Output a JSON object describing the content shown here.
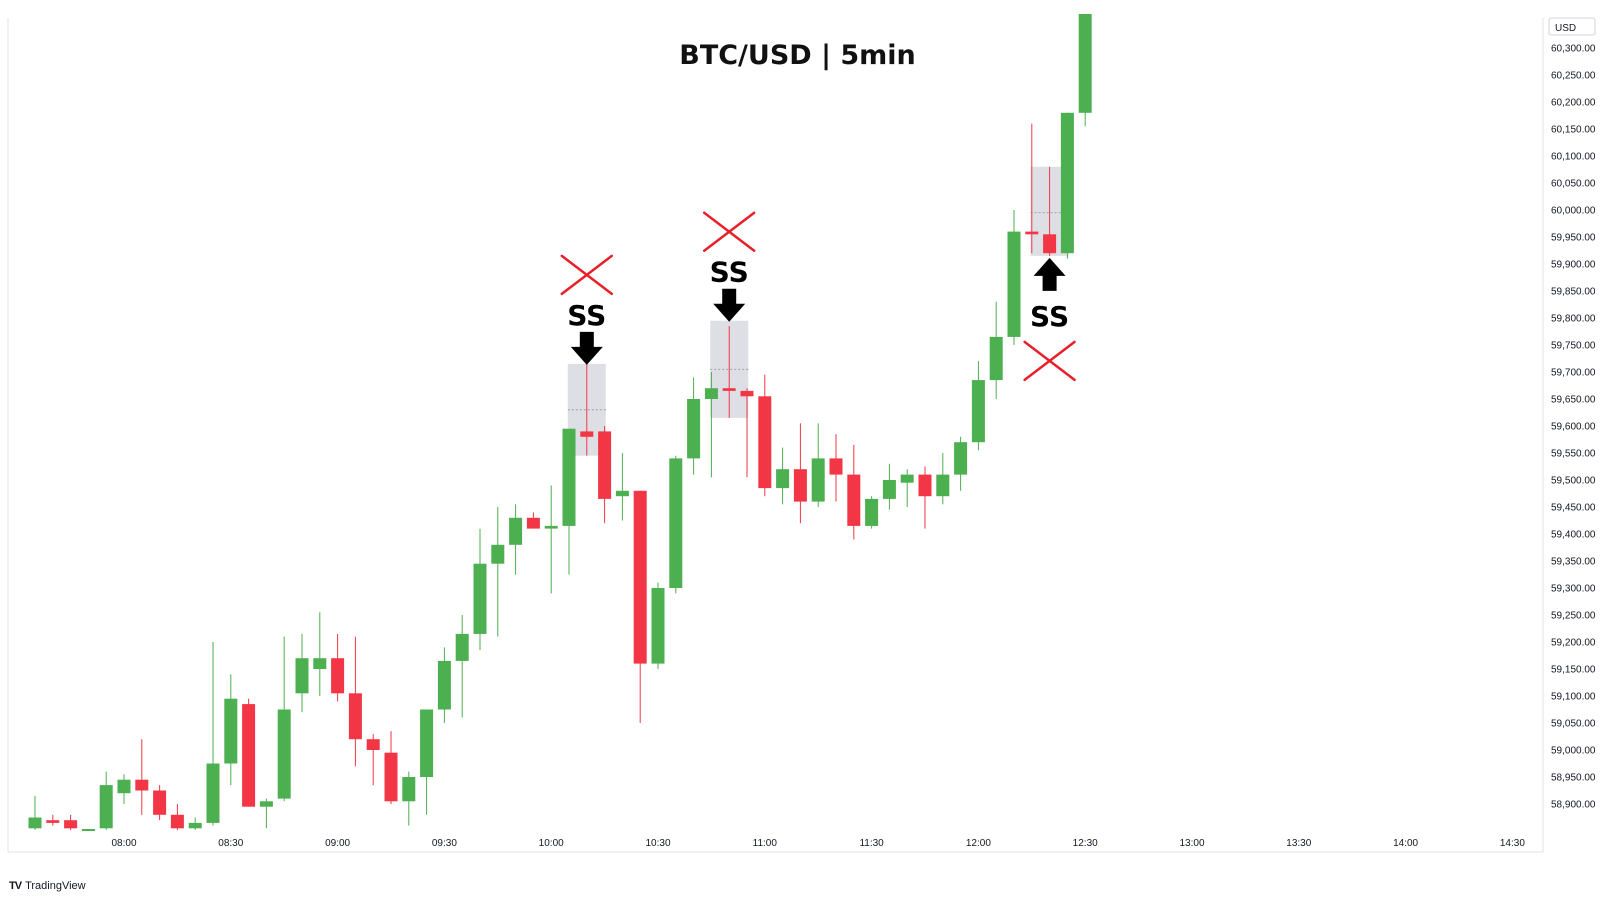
{
  "title": "BTC/USD | 5min",
  "brand": {
    "logo": "TV",
    "name": "TradingView"
  },
  "currency_label": "USD",
  "colors": {
    "up": "#4caf50",
    "down": "#f23645",
    "signal_zone": "#d1d4dc",
    "cross": "#e8202a",
    "arrow": "#000000"
  },
  "chart_data": {
    "type": "candlestick",
    "title": "BTC/USD | 5min",
    "ylabel": "USD",
    "ylim": [
      58840,
      60350
    ],
    "y_ticks": [
      58900,
      58950,
      59000,
      59050,
      59100,
      59150,
      59200,
      59250,
      59300,
      59350,
      59400,
      59450,
      59500,
      59550,
      59600,
      59650,
      59700,
      59750,
      59800,
      59850,
      59900,
      59950,
      60000,
      60050,
      60100,
      60150,
      60200,
      60250,
      60300
    ],
    "y_tick_labels": [
      "58,900.00",
      "58,950.00",
      "59,000.00",
      "59,050.00",
      "59,100.00",
      "59,150.00",
      "59,200.00",
      "59,250.00",
      "59,300.00",
      "59,350.00",
      "59,400.00",
      "59,450.00",
      "59,500.00",
      "59,550.00",
      "59,600.00",
      "59,650.00",
      "59,700.00",
      "59,750.00",
      "59,800.00",
      "59,850.00",
      "59,900.00",
      "59,950.00",
      "60,000.00",
      "60,050.00",
      "60,100.00",
      "60,150.00",
      "60,200.00",
      "60,250.00",
      "60,300.00"
    ],
    "x_tick_labels": [
      "08:00",
      "08:30",
      "09:00",
      "09:30",
      "10:00",
      "10:30",
      "11:00",
      "11:30",
      "12:00",
      "12:30",
      "13:00",
      "13:30",
      "14:00",
      "14:30"
    ],
    "first_candle_time": "07:35",
    "interval_minutes": 5,
    "candles": [
      {
        "o": 58855,
        "h": 58915,
        "l": 58845,
        "c": 58875
      },
      {
        "o": 58870,
        "h": 58880,
        "l": 58860,
        "c": 58865
      },
      {
        "o": 58870,
        "h": 58880,
        "l": 58845,
        "c": 58855
      },
      {
        "o": 58845,
        "h": 58850,
        "l": 58840,
        "c": 58845
      },
      {
        "o": 58855,
        "h": 58960,
        "l": 58850,
        "c": 58935
      },
      {
        "o": 58920,
        "h": 58955,
        "l": 58900,
        "c": 58945
      },
      {
        "o": 58945,
        "h": 59020,
        "l": 58880,
        "c": 58925
      },
      {
        "o": 58925,
        "h": 58935,
        "l": 58870,
        "c": 58880
      },
      {
        "o": 58880,
        "h": 58900,
        "l": 58850,
        "c": 58855
      },
      {
        "o": 58855,
        "h": 58875,
        "l": 58845,
        "c": 58865
      },
      {
        "o": 58865,
        "h": 59200,
        "l": 58860,
        "c": 58975
      },
      {
        "o": 58975,
        "h": 59140,
        "l": 58935,
        "c": 59095
      },
      {
        "o": 59085,
        "h": 59095,
        "l": 58895,
        "c": 58895
      },
      {
        "o": 58895,
        "h": 58910,
        "l": 58855,
        "c": 58905
      },
      {
        "o": 58910,
        "h": 59210,
        "l": 58905,
        "c": 59075
      },
      {
        "o": 59105,
        "h": 59215,
        "l": 59070,
        "c": 59170
      },
      {
        "o": 59150,
        "h": 59255,
        "l": 59100,
        "c": 59170
      },
      {
        "o": 59170,
        "h": 59215,
        "l": 59090,
        "c": 59105
      },
      {
        "o": 59105,
        "h": 59210,
        "l": 58970,
        "c": 59020
      },
      {
        "o": 59020,
        "h": 59030,
        "l": 58935,
        "c": 59000
      },
      {
        "o": 58995,
        "h": 59035,
        "l": 58900,
        "c": 58905
      },
      {
        "o": 58905,
        "h": 58960,
        "l": 58860,
        "c": 58950
      },
      {
        "o": 58950,
        "h": 59075,
        "l": 58880,
        "c": 59075
      },
      {
        "o": 59075,
        "h": 59190,
        "l": 59050,
        "c": 59165
      },
      {
        "o": 59165,
        "h": 59250,
        "l": 59060,
        "c": 59215
      },
      {
        "o": 59215,
        "h": 59410,
        "l": 59185,
        "c": 59345
      },
      {
        "o": 59345,
        "h": 59450,
        "l": 59210,
        "c": 59380
      },
      {
        "o": 59380,
        "h": 59455,
        "l": 59325,
        "c": 59430
      },
      {
        "o": 59430,
        "h": 59440,
        "l": 59415,
        "c": 59410
      },
      {
        "o": 59410,
        "h": 59490,
        "l": 59290,
        "c": 59415
      },
      {
        "o": 59415,
        "h": 59590,
        "l": 59325,
        "c": 59595
      },
      {
        "o": 59590,
        "h": 59720,
        "l": 59545,
        "c": 59580
      },
      {
        "o": 59590,
        "h": 59600,
        "l": 59420,
        "c": 59465
      },
      {
        "o": 59470,
        "h": 59550,
        "l": 59425,
        "c": 59480
      },
      {
        "o": 59480,
        "h": 59480,
        "l": 59050,
        "c": 59160
      },
      {
        "o": 59160,
        "h": 59310,
        "l": 59150,
        "c": 59300
      },
      {
        "o": 59300,
        "h": 59545,
        "l": 59290,
        "c": 59540
      },
      {
        "o": 59540,
        "h": 59690,
        "l": 59510,
        "c": 59650
      },
      {
        "o": 59650,
        "h": 59700,
        "l": 59505,
        "c": 59670
      },
      {
        "o": 59670,
        "h": 59785,
        "l": 59615,
        "c": 59665
      },
      {
        "o": 59665,
        "h": 59670,
        "l": 59505,
        "c": 59655
      },
      {
        "o": 59655,
        "h": 59695,
        "l": 59470,
        "c": 59485
      },
      {
        "o": 59485,
        "h": 59560,
        "l": 59455,
        "c": 59520
      },
      {
        "o": 59520,
        "h": 59605,
        "l": 59420,
        "c": 59460
      },
      {
        "o": 59460,
        "h": 59605,
        "l": 59450,
        "c": 59540
      },
      {
        "o": 59540,
        "h": 59585,
        "l": 59460,
        "c": 59510
      },
      {
        "o": 59510,
        "h": 59565,
        "l": 59390,
        "c": 59415
      },
      {
        "o": 59415,
        "h": 59470,
        "l": 59410,
        "c": 59465
      },
      {
        "o": 59465,
        "h": 59530,
        "l": 59445,
        "c": 59500
      },
      {
        "o": 59495,
        "h": 59520,
        "l": 59450,
        "c": 59510
      },
      {
        "o": 59510,
        "h": 59525,
        "l": 59410,
        "c": 59470
      },
      {
        "o": 59470,
        "h": 59550,
        "l": 59455,
        "c": 59510
      },
      {
        "o": 59510,
        "h": 59580,
        "l": 59480,
        "c": 59570
      },
      {
        "o": 59570,
        "h": 59720,
        "l": 59555,
        "c": 59685
      },
      {
        "o": 59685,
        "h": 59830,
        "l": 59650,
        "c": 59765
      },
      {
        "o": 59765,
        "h": 60000,
        "l": 59750,
        "c": 59960
      },
      {
        "o": 59960,
        "h": 60160,
        "l": 59920,
        "c": 59955
      },
      {
        "o": 59955,
        "h": 60080,
        "l": 59915,
        "c": 59920
      },
      {
        "o": 59920,
        "h": 60180,
        "l": 59910,
        "c": 60180
      },
      {
        "o": 60180,
        "h": 60370,
        "l": 60155,
        "c": 60370
      }
    ],
    "signals": [
      {
        "label": "SS",
        "candle": 31,
        "direction": "down",
        "zone_top": 59715,
        "zone_bottom": 59545,
        "mid": 59630
      },
      {
        "label": "SS",
        "candle": 39,
        "direction": "down",
        "zone_top": 59795,
        "zone_bottom": 59615,
        "mid": 59705
      },
      {
        "label": "SS",
        "candle": 57,
        "direction": "up",
        "zone_top": 60080,
        "zone_bottom": 59915,
        "mid": 59995
      }
    ]
  }
}
